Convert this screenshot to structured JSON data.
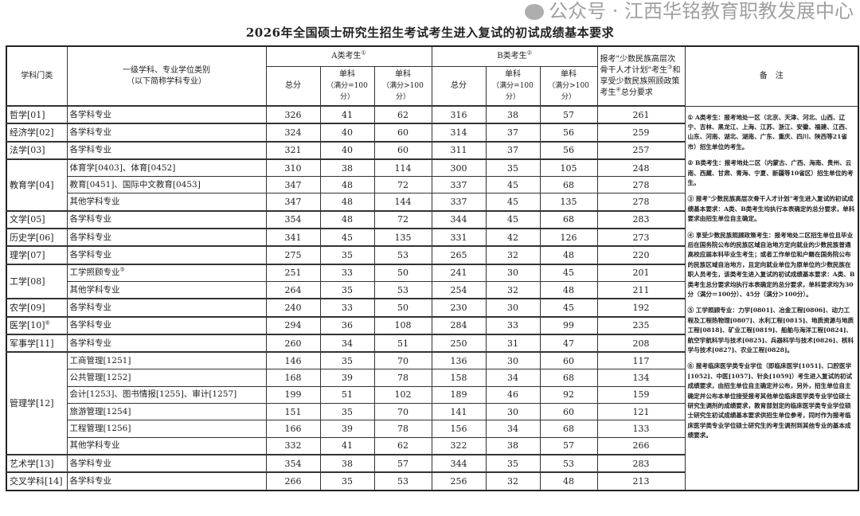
{
  "title": "2026年全国硕士研究生招生考试考生进入复试的初试成绩基本要求",
  "header": {
    "category": "学科门类",
    "subject_line1": "一级学科、专业学位类别",
    "subject_line2": "（以下简称学科专业）",
    "groupA": "A类考生",
    "groupA_mark": "①",
    "groupB": "B类考生",
    "groupB_mark": "②",
    "total": "总分",
    "single": "单科",
    "single_eq100": "（满分=100分）",
    "single_gt100": "（满分>100分）",
    "special_p1": "报考\"少数民族高层次骨干人才计划\"考生",
    "special_m1": "③",
    "special_p2": "和享受少数民族照顾政策考生",
    "special_m2": "④",
    "special_p3": "总分要求",
    "notes": "备　注"
  },
  "groups": [
    {
      "category": "哲学[01]",
      "items": [
        {
          "subject": "各学科专业",
          "values": [
            326,
            41,
            62,
            316,
            38,
            57,
            261
          ]
        }
      ]
    },
    {
      "category": "经济学[02]",
      "items": [
        {
          "subject": "各学科专业",
          "values": [
            324,
            40,
            60,
            314,
            37,
            56,
            259
          ]
        }
      ]
    },
    {
      "category": "法学[03]",
      "items": [
        {
          "subject": "各学科专业",
          "values": [
            321,
            40,
            60,
            311,
            37,
            56,
            257
          ]
        }
      ]
    },
    {
      "category": "教育学[04]",
      "items": [
        {
          "subject": "体育学[0403]、体育[0452]",
          "values": [
            310,
            38,
            114,
            300,
            35,
            105,
            248
          ]
        },
        {
          "subject": "教育[0451]、国际中文教育[0453]",
          "values": [
            347,
            48,
            72,
            337,
            45,
            68,
            278
          ]
        },
        {
          "subject": "其他学科专业",
          "values": [
            347,
            48,
            144,
            337,
            45,
            135,
            278
          ]
        }
      ]
    },
    {
      "category": "文学[05]",
      "items": [
        {
          "subject": "各学科专业",
          "values": [
            354,
            48,
            72,
            344,
            45,
            68,
            283
          ]
        }
      ]
    },
    {
      "category": "历史学[06]",
      "items": [
        {
          "subject": "各学科专业",
          "values": [
            341,
            45,
            135,
            331,
            42,
            126,
            273
          ]
        }
      ]
    },
    {
      "category": "理学[07]",
      "items": [
        {
          "subject": "各学科专业",
          "values": [
            275,
            35,
            53,
            265,
            32,
            48,
            220
          ]
        }
      ]
    },
    {
      "category": "工学[08]",
      "items": [
        {
          "subject": "工学照顾专业",
          "mark": "⑤",
          "values": [
            251,
            33,
            50,
            241,
            30,
            45,
            201
          ]
        },
        {
          "subject": "其他学科专业",
          "values": [
            264,
            35,
            53,
            254,
            32,
            48,
            211
          ]
        }
      ]
    },
    {
      "category": "农学[09]",
      "items": [
        {
          "subject": "各学科专业",
          "values": [
            240,
            33,
            50,
            230,
            30,
            45,
            192
          ]
        }
      ]
    },
    {
      "category": "医学[10]",
      "mark": "⑥",
      "items": [
        {
          "subject": "各学科专业",
          "values": [
            294,
            36,
            108,
            284,
            33,
            99,
            235
          ]
        }
      ]
    },
    {
      "category": "军事学[11]",
      "items": [
        {
          "subject": "各学科专业",
          "values": [
            260,
            34,
            51,
            250,
            31,
            47,
            208
          ]
        }
      ]
    },
    {
      "category": "管理学[12]",
      "items": [
        {
          "subject": "工商管理[1251]",
          "values": [
            146,
            35,
            70,
            136,
            30,
            60,
            117
          ]
        },
        {
          "subject": "公共管理[1252]",
          "values": [
            168,
            39,
            78,
            158,
            34,
            68,
            134
          ]
        },
        {
          "subject": "会计[1253]、图书情报[1255]、审计[1257]",
          "values": [
            199,
            51,
            102,
            189,
            46,
            92,
            159
          ]
        },
        {
          "subject": "旅游管理[1254]",
          "values": [
            151,
            35,
            70,
            141,
            30,
            60,
            121
          ]
        },
        {
          "subject": "工程管理[1256]",
          "values": [
            166,
            39,
            78,
            156,
            34,
            68,
            133
          ]
        },
        {
          "subject": "其他学科专业",
          "values": [
            332,
            41,
            62,
            322,
            38,
            57,
            266
          ]
        }
      ]
    },
    {
      "category": "艺术学[13]",
      "items": [
        {
          "subject": "各学科专业",
          "values": [
            354,
            38,
            57,
            344,
            35,
            53,
            283
          ]
        }
      ]
    },
    {
      "category": "交叉学科[14]",
      "items": [
        {
          "subject": "各学科专业",
          "values": [
            266,
            35,
            53,
            256,
            32,
            48,
            213
          ]
        }
      ]
    }
  ],
  "notes": [
    "① A类考生：报考地处一区（北京、天津、河北、山西、辽宁、吉林、黑龙江、上海、江苏、浙江、安徽、福建、江西、山东、河南、湖北、湖南、广东、重庆、四川、陕西等21省市）招生单位的考生。",
    "② B类考生：报考地处二区（内蒙古、广西、海南、贵州、云南、西藏、甘肃、青海、宁夏、新疆等10省区）招生单位的考生。",
    "③ 报考\"少数民族高层次骨干人才计划\"考生进入复试的初试成绩基本要求：A类、B类考生均执行本表确定的总分要求，单科要求由招生单位自主确定。",
    "④ 享受少数民族照顾政策考生：报考地处二区招生单位且毕业后在国务院公布的民族区域自治地方定向就业的少数民族普通高校应届本科毕业生考生；或者工作单位和户籍在国务院公布的民族区域自治地方，且定向就业单位为原单位的少数民族在职人员考生，该类考生进入复试的初试成绩基本要求：A类、B类考生总分要求均执行本表确定的总分要求，单科要求均为30分（满分＝100分）、45分（满分＞100分）。",
    "⑤ 工学照顾专业：力学[0801]、冶金工程[0806]、动力工程及工程热物理[0807]、水利工程[0815]、地质资源与地质工程[0818]、矿业工程[0819]、船舶与海洋工程[0824]、航空宇航科学与技术[0825]、兵器科学与技术[0826]、核科学与技术[0827]、农业工程[0828]。",
    "⑥ 报考临床医学类专业学位（即临床医学[1051]、口腔医学[1052]、中医[1057]、针灸[1059]）考生进入复试的初试成绩要求，由招生单位自主确定并公布，另外，招生单位自主确定并公布本单位接受报考其他单位临床医学类专业学位硕士研究生调剂的成绩要求，教育部划定的临床医学类专业学位硕士研究生初试成绩基本要求供招生单位参考，同时作为报考临床医学类专业学位硕士研究生的考生调剂到其他专业的基本成绩要求。"
  ],
  "watermark": "公众号 · 江西华铭教育职教发展中心"
}
